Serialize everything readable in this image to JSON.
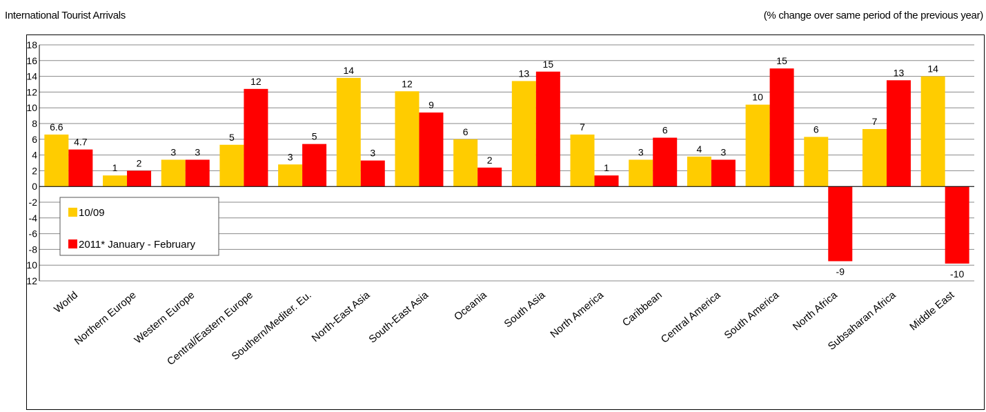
{
  "header": {
    "left_title": "International Tourist Arrivals",
    "right_note": "(% change over same period of the previous year)"
  },
  "chart_data": {
    "type": "bar",
    "title": "International Tourist Arrivals",
    "subtitle": "(% change over same period of the previous year)",
    "xlabel": "",
    "ylabel": "",
    "ylim": [
      -12,
      18
    ],
    "yticks": [
      18,
      16,
      14,
      12,
      10,
      8,
      6,
      4,
      2,
      0,
      -2,
      -4,
      -6,
      -8,
      -10,
      -12
    ],
    "grid": true,
    "legend_position": "left",
    "categories": [
      "World",
      "Northern Europe",
      "Western Europe",
      "Central/Eastern Europe",
      "Southern/Mediter. Eu.",
      "North-East Asia",
      "South-East Asia",
      "Oceania",
      "South Asia",
      "North America",
      "Caribbean",
      "Central America",
      "South America",
      "North Africa",
      "Subsaharan Africa",
      "Middle East"
    ],
    "series": [
      {
        "name": "10/09",
        "color": "#FFCC00",
        "values": [
          6.6,
          1.4,
          3.4,
          5.3,
          2.8,
          13.8,
          12.1,
          6.0,
          13.4,
          6.6,
          3.4,
          3.8,
          10.4,
          6.3,
          7.3,
          14.0
        ],
        "labels": [
          "6.6",
          "1",
          "3",
          "5",
          "3",
          "14",
          "12",
          "6",
          "13",
          "7",
          "3",
          "4",
          "10",
          "6",
          "7",
          "14"
        ]
      },
      {
        "name": "2011* January - February",
        "color": "#FF0000",
        "values": [
          4.7,
          2.0,
          3.4,
          12.4,
          5.4,
          3.3,
          9.4,
          2.4,
          14.6,
          1.4,
          6.2,
          3.4,
          15.0,
          -9.5,
          13.5,
          -9.8
        ],
        "labels": [
          "4.7",
          "2",
          "3",
          "12",
          "5",
          "3",
          "9",
          "2",
          "15",
          "1",
          "6",
          "3",
          "15",
          "-9",
          "13",
          "-10"
        ]
      }
    ]
  }
}
